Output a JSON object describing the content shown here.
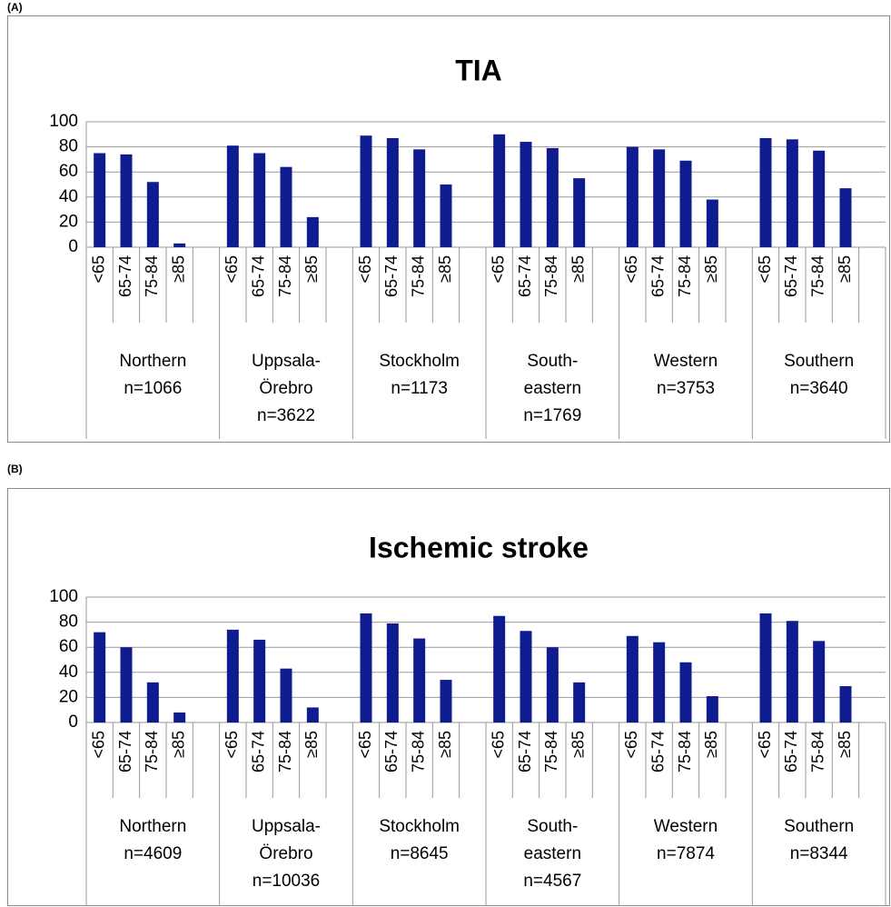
{
  "chart_data": [
    {
      "type": "bar",
      "panel_label": "(A)",
      "title": "TIA",
      "categories": [
        "<65",
        "65-74",
        "75-84",
        "≥85",
        "<65",
        "65-74",
        "75-84",
        "≥85",
        "<65",
        "65-74",
        "75-84",
        "≥85",
        "<65",
        "65-74",
        "75-84",
        "≥85",
        "<65",
        "65-74",
        "75-84",
        "≥85",
        "<65",
        "65-74",
        "75-84",
        "≥85"
      ],
      "groups": [
        [
          "Northern",
          "n=1066"
        ],
        [
          "Uppsala-",
          "Örebro",
          "n=3622"
        ],
        [
          "Stockholm",
          "n=1173"
        ],
        [
          "South-",
          "eastern",
          "n=1769"
        ],
        [
          "Western",
          "n=3753"
        ],
        [
          "Southern",
          "n=3640"
        ]
      ],
      "values": [
        75,
        74,
        52,
        3,
        81,
        75,
        64,
        24,
        89,
        87,
        78,
        50,
        90,
        84,
        79,
        55,
        80,
        78,
        69,
        38,
        87,
        86,
        77,
        47
      ],
      "color": "#0f1c8f",
      "ylim": [
        0,
        100
      ],
      "yticks": [
        0,
        20,
        40,
        60,
        80,
        100
      ],
      "grid": true
    },
    {
      "type": "bar",
      "panel_label": "(B)",
      "title": "Ischemic stroke",
      "categories": [
        "<65",
        "65-74",
        "75-84",
        "≥85",
        "<65",
        "65-74",
        "75-84",
        "≥85",
        "<65",
        "65-74",
        "75-84",
        "≥85",
        "<65",
        "65-74",
        "75-84",
        "≥85",
        "<65",
        "65-74",
        "75-84",
        "≥85",
        "<65",
        "65-74",
        "75-84",
        "≥85"
      ],
      "groups": [
        [
          "Northern",
          "n=4609"
        ],
        [
          "Uppsala-",
          "Örebro",
          "n=10036"
        ],
        [
          "Stockholm",
          "n=8645"
        ],
        [
          "South-",
          "eastern",
          "n=4567"
        ],
        [
          "Western",
          "n=7874"
        ],
        [
          "Southern",
          "n=8344"
        ]
      ],
      "values": [
        72,
        60,
        32,
        8,
        74,
        66,
        43,
        12,
        87,
        79,
        67,
        34,
        85,
        73,
        60,
        32,
        69,
        64,
        48,
        21,
        87,
        81,
        65,
        29
      ],
      "color": "#0f1c8f",
      "ylim": [
        0,
        100
      ],
      "yticks": [
        0,
        20,
        40,
        60,
        80,
        100
      ],
      "grid": true
    }
  ]
}
